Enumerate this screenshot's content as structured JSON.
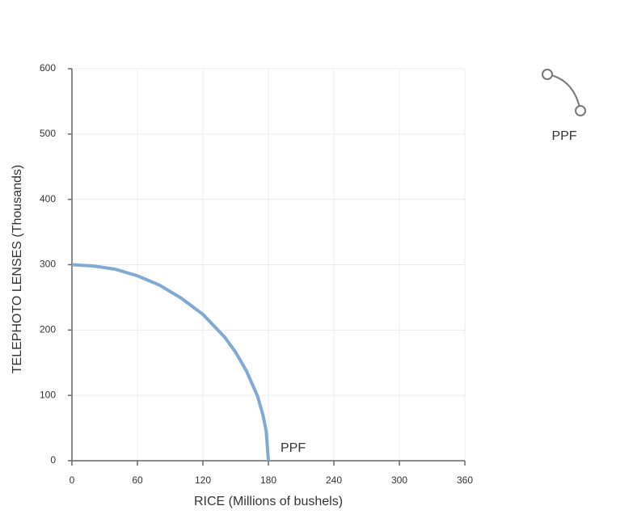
{
  "chart_data": {
    "type": "line",
    "x_label": "RICE (Millions of bushels)",
    "y_label": "TELEPHOTO LENSES (Thousands)",
    "x": [
      0,
      20,
      40,
      60,
      80,
      100,
      120,
      140,
      150,
      160,
      170,
      175,
      178,
      180
    ],
    "series": [
      {
        "name": "PPF",
        "color": "#80aad4",
        "values": [
          300,
          298,
          293,
          283,
          269,
          249,
          224,
          189,
          166,
          137,
          99,
          70,
          45,
          0
        ]
      }
    ],
    "xlim": [
      0,
      360
    ],
    "xticks": [
      0,
      60,
      120,
      180,
      240,
      300,
      360
    ],
    "ylim": [
      0,
      600
    ],
    "yticks": [
      0,
      100,
      200,
      300,
      400,
      500,
      600
    ],
    "grid": true,
    "legend": "right"
  }
}
